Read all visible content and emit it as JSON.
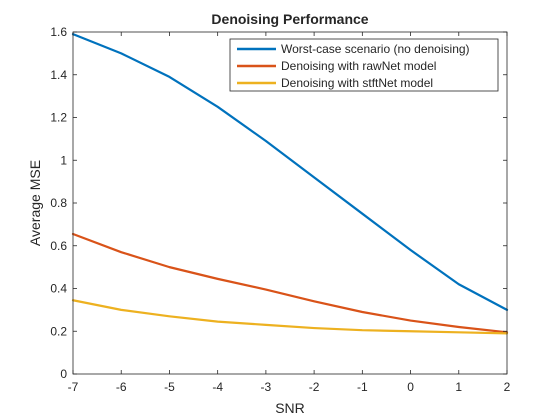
{
  "chart_data": {
    "type": "line",
    "title": "Denoising Performance",
    "xlabel": "SNR",
    "ylabel": "Average MSE",
    "xlim": [
      -7,
      2
    ],
    "ylim": [
      0,
      1.6
    ],
    "xticks": [
      -7,
      -6,
      -5,
      -4,
      -3,
      -2,
      -1,
      0,
      1,
      2
    ],
    "yticks": [
      0,
      0.2,
      0.4,
      0.6,
      0.8,
      1,
      1.2,
      1.4,
      1.6
    ],
    "xtick_labels": [
      "-7",
      "-6",
      "-5",
      "-4",
      "-3",
      "-2",
      "-1",
      "0",
      "1",
      "2"
    ],
    "ytick_labels": [
      "0",
      "0.2",
      "0.4",
      "0.6",
      "0.8",
      "1",
      "1.2",
      "1.4",
      "1.6"
    ],
    "grid": false,
    "legend_position": "top-right",
    "x": [
      -7,
      -6,
      -5,
      -4,
      -3,
      -2,
      -1,
      0,
      1,
      2
    ],
    "series": [
      {
        "name": "Worst-case scenario (no denoising)",
        "color": "#0072BD",
        "values": [
          1.59,
          1.5,
          1.39,
          1.25,
          1.09,
          0.92,
          0.75,
          0.58,
          0.42,
          0.3
        ]
      },
      {
        "name": "Denoising with rawNet model",
        "color": "#D95319",
        "values": [
          0.655,
          0.57,
          0.5,
          0.445,
          0.395,
          0.34,
          0.29,
          0.25,
          0.22,
          0.195
        ]
      },
      {
        "name": "Denoising with stftNet model",
        "color": "#EDB120",
        "values": [
          0.345,
          0.3,
          0.27,
          0.245,
          0.23,
          0.215,
          0.205,
          0.2,
          0.195,
          0.19
        ]
      }
    ]
  }
}
